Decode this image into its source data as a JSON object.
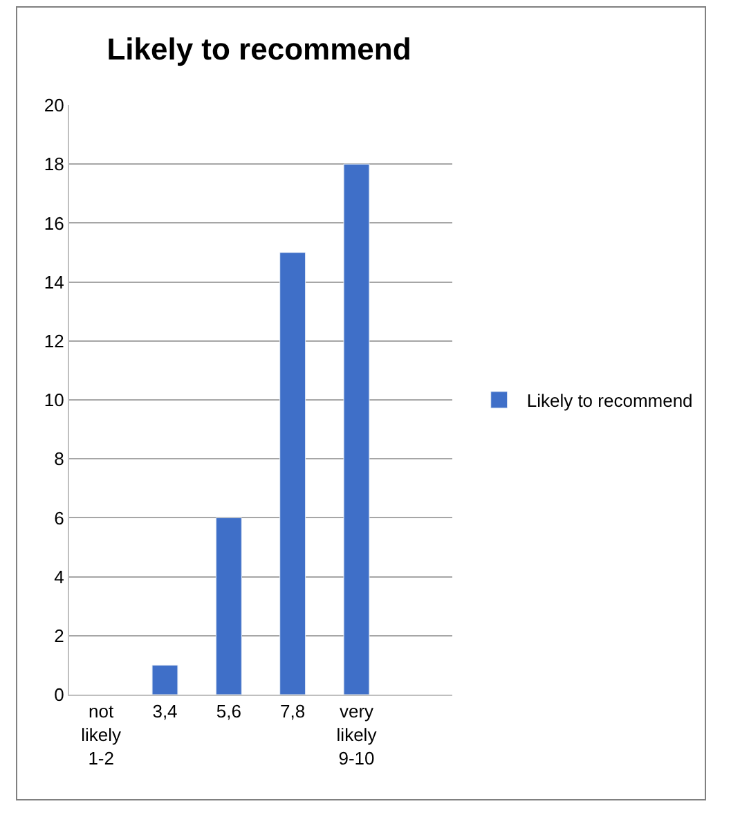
{
  "chart_data": {
    "type": "bar",
    "title": "Likely to recommend",
    "categories": [
      "not likely 1-2",
      "3,4",
      "5,6",
      "7,8",
      "very likely 9-10",
      null
    ],
    "series": [
      {
        "name": "Likely to recommend",
        "color": "#3f6fc8",
        "values": [
          null,
          1,
          6,
          15,
          18,
          null
        ]
      }
    ],
    "ylim": [
      0,
      20
    ],
    "yticks": [
      0,
      2,
      4,
      6,
      8,
      10,
      12,
      14,
      16,
      18,
      20
    ],
    "grid": "y",
    "legend": "right"
  }
}
